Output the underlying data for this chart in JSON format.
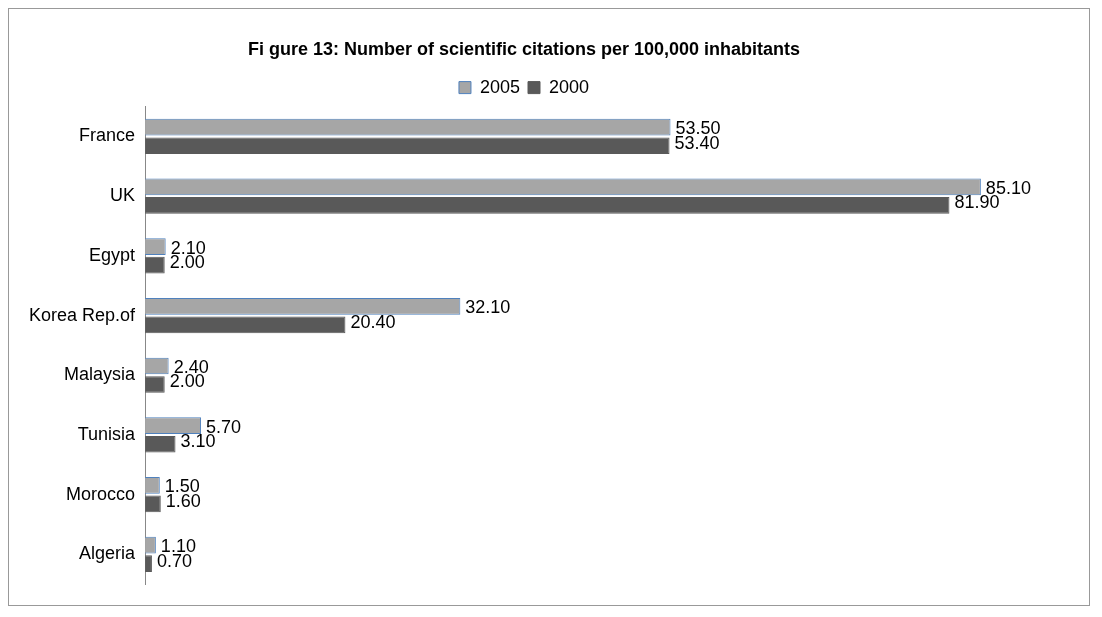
{
  "chart_data": {
    "type": "bar",
    "orientation": "horizontal",
    "title": "Fi gure 13: Number of scientific citations per 100,000 inhabitants",
    "categories": [
      "France",
      "UK",
      "Egypt",
      "Korea Rep.of",
      "Malaysia",
      "Tunisia",
      "Morocco",
      "Algeria"
    ],
    "series": [
      {
        "name": "2005",
        "color": "#a6a6a6",
        "values": [
          53.5,
          85.1,
          2.1,
          32.1,
          2.4,
          5.7,
          1.5,
          1.1
        ],
        "value_labels": [
          "53.50",
          "85.10",
          "2.10",
          "32.10",
          "2.40",
          "5.70",
          "1.50",
          "1.10"
        ]
      },
      {
        "name": "2000",
        "color": "#595959",
        "values": [
          53.4,
          81.9,
          2.0,
          20.4,
          2.0,
          3.1,
          1.6,
          0.7
        ],
        "value_labels": [
          "53.40",
          "81.90",
          "2.00",
          "20.40",
          "2.00",
          "3.10",
          "1.60",
          "0.70"
        ]
      }
    ],
    "legend": "top",
    "grid": false,
    "tick_labels": "y"
  }
}
